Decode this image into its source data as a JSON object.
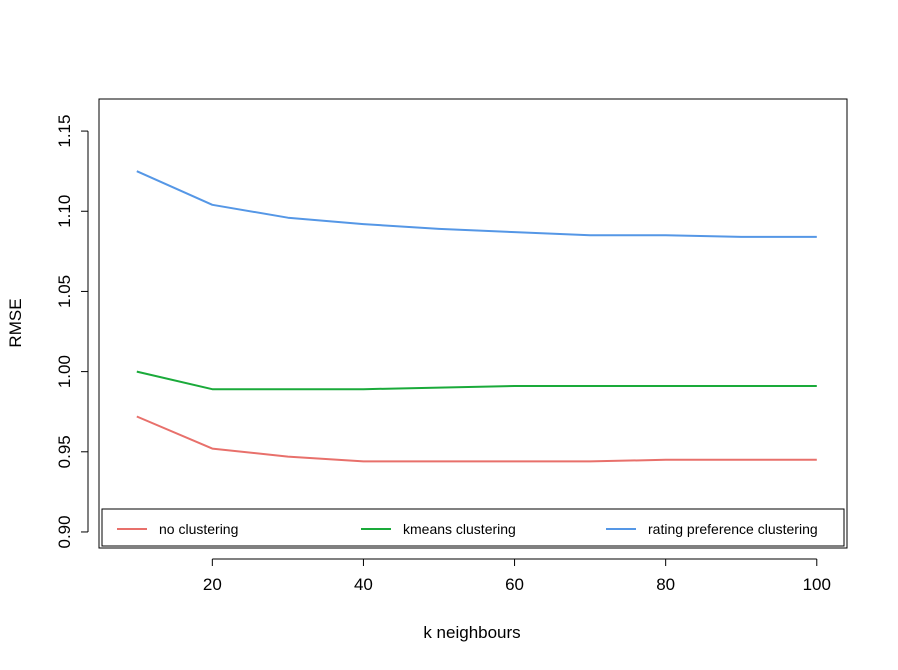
{
  "chart_data": {
    "type": "line",
    "title": "",
    "xlabel": "k neighbours",
    "ylabel": "RMSE",
    "xlim": [
      5,
      104
    ],
    "ylim": [
      0.89,
      1.17
    ],
    "x_ticks": [
      20,
      40,
      60,
      80,
      100
    ],
    "y_ticks": [
      0.9,
      0.95,
      1.0,
      1.05,
      1.1,
      1.15
    ],
    "x_tick_labels": [
      "20",
      "40",
      "60",
      "80",
      "100"
    ],
    "y_tick_labels": [
      "0.90",
      "0.95",
      "1.00",
      "1.05",
      "1.10",
      "1.15"
    ],
    "grid": false,
    "legend_position": "bottom",
    "x": [
      10,
      20,
      30,
      40,
      50,
      60,
      70,
      80,
      90,
      100
    ],
    "series": [
      {
        "name": "no clustering",
        "color": "#E8706B",
        "values": [
          0.972,
          0.952,
          0.947,
          0.944,
          0.944,
          0.944,
          0.944,
          0.945,
          0.945,
          0.945
        ]
      },
      {
        "name": "kmeans clustering",
        "color": "#1AAA3A",
        "values": [
          1.0,
          0.989,
          0.989,
          0.989,
          0.99,
          0.991,
          0.991,
          0.991,
          0.991,
          0.991
        ]
      },
      {
        "name": "rating preference clustering",
        "color": "#5597E6",
        "values": [
          1.125,
          1.104,
          1.096,
          1.092,
          1.089,
          1.087,
          1.085,
          1.085,
          1.084,
          1.084
        ]
      }
    ]
  }
}
